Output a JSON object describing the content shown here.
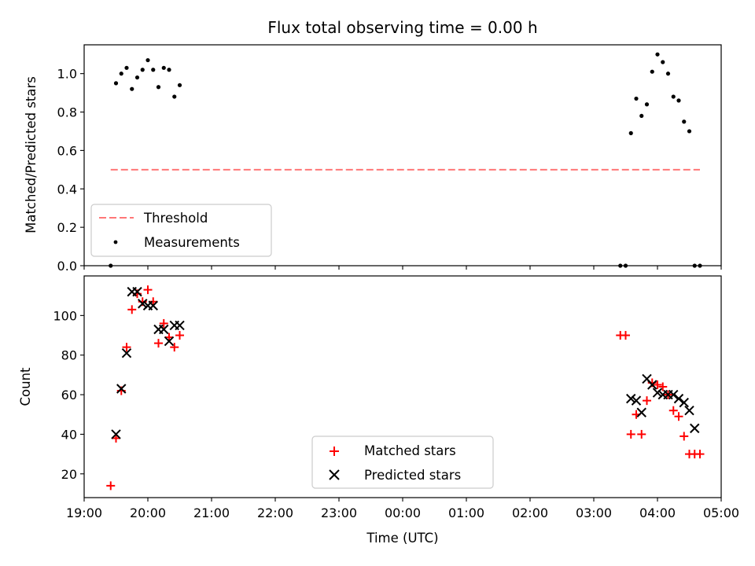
{
  "chart_data": [
    {
      "type": "scatter",
      "title": "Flux total observing time = 0.00 h",
      "xlabel": "",
      "ylabel": "Matched/Predicted stars",
      "xlim": [
        "19:00",
        "05:00"
      ],
      "ylim": [
        0,
        1.15
      ],
      "ytick_labels": [
        "0.0",
        "0.2",
        "0.4",
        "0.6",
        "0.8",
        "1.0"
      ],
      "ytick_values": [
        0,
        0.2,
        0.4,
        0.6,
        0.8,
        1.0
      ],
      "grid": false,
      "legend_position": "lower-left",
      "threshold": {
        "name": "Threshold",
        "value": 0.5,
        "x_start": "19:25",
        "x_end": "04:40",
        "color": "#ff7777",
        "style": "dashed"
      },
      "series": [
        {
          "name": "Measurements",
          "marker": "dot",
          "color": "#000000",
          "points": [
            {
              "x": "19:25",
              "y": 0.0
            },
            {
              "x": "19:30",
              "y": 0.95
            },
            {
              "x": "19:35",
              "y": 1.0
            },
            {
              "x": "19:40",
              "y": 1.03
            },
            {
              "x": "19:45",
              "y": 0.92
            },
            {
              "x": "19:50",
              "y": 0.98
            },
            {
              "x": "19:55",
              "y": 1.02
            },
            {
              "x": "20:00",
              "y": 1.07
            },
            {
              "x": "20:05",
              "y": 1.02
            },
            {
              "x": "20:10",
              "y": 0.93
            },
            {
              "x": "20:15",
              "y": 1.03
            },
            {
              "x": "20:20",
              "y": 1.02
            },
            {
              "x": "20:25",
              "y": 0.88
            },
            {
              "x": "20:30",
              "y": 0.94
            },
            {
              "x": "03:25",
              "y": 0.0
            },
            {
              "x": "03:30",
              "y": 0.0
            },
            {
              "x": "03:35",
              "y": 0.69
            },
            {
              "x": "03:40",
              "y": 0.87
            },
            {
              "x": "03:45",
              "y": 0.78
            },
            {
              "x": "03:50",
              "y": 0.84
            },
            {
              "x": "03:55",
              "y": 1.01
            },
            {
              "x": "04:00",
              "y": 1.1
            },
            {
              "x": "04:05",
              "y": 1.06
            },
            {
              "x": "04:10",
              "y": 1.0
            },
            {
              "x": "04:15",
              "y": 0.88
            },
            {
              "x": "04:20",
              "y": 0.86
            },
            {
              "x": "04:25",
              "y": 0.75
            },
            {
              "x": "04:30",
              "y": 0.7
            },
            {
              "x": "04:35",
              "y": 0.0
            },
            {
              "x": "04:40",
              "y": 0.0
            }
          ]
        }
      ]
    },
    {
      "type": "scatter",
      "title": "",
      "xlabel": "Time (UTC)",
      "ylabel": "Count",
      "xlim": [
        "19:00",
        "05:00"
      ],
      "ylim": [
        8,
        120
      ],
      "xtick_labels": [
        "19:00",
        "20:00",
        "21:00",
        "22:00",
        "23:00",
        "00:00",
        "01:00",
        "02:00",
        "03:00",
        "04:00",
        "05:00"
      ],
      "ytick_labels": [
        "20",
        "40",
        "60",
        "80",
        "100"
      ],
      "ytick_values": [
        20,
        40,
        60,
        80,
        100
      ],
      "grid": false,
      "legend_position": "lower-center",
      "series": [
        {
          "name": "Matched stars",
          "marker": "plus",
          "color": "#ff0000",
          "points": [
            {
              "x": "19:25",
              "y": 14
            },
            {
              "x": "19:30",
              "y": 38
            },
            {
              "x": "19:35",
              "y": 62
            },
            {
              "x": "19:40",
              "y": 84
            },
            {
              "x": "19:45",
              "y": 103
            },
            {
              "x": "19:50",
              "y": 111
            },
            {
              "x": "19:55",
              "y": 107
            },
            {
              "x": "20:00",
              "y": 113
            },
            {
              "x": "20:05",
              "y": 107
            },
            {
              "x": "20:10",
              "y": 86
            },
            {
              "x": "20:15",
              "y": 96
            },
            {
              "x": "20:20",
              "y": 89
            },
            {
              "x": "20:25",
              "y": 84
            },
            {
              "x": "20:30",
              "y": 90
            },
            {
              "x": "03:25",
              "y": 90
            },
            {
              "x": "03:30",
              "y": 90
            },
            {
              "x": "03:35",
              "y": 40
            },
            {
              "x": "03:40",
              "y": 50
            },
            {
              "x": "03:45",
              "y": 40
            },
            {
              "x": "03:50",
              "y": 57
            },
            {
              "x": "03:55",
              "y": 66
            },
            {
              "x": "04:00",
              "y": 65
            },
            {
              "x": "04:05",
              "y": 64
            },
            {
              "x": "04:10",
              "y": 60
            },
            {
              "x": "04:15",
              "y": 52
            },
            {
              "x": "04:20",
              "y": 49
            },
            {
              "x": "04:25",
              "y": 39
            },
            {
              "x": "04:30",
              "y": 30
            },
            {
              "x": "04:35",
              "y": 30
            },
            {
              "x": "04:40",
              "y": 30
            }
          ]
        },
        {
          "name": "Predicted stars",
          "marker": "x",
          "color": "#000000",
          "points": [
            {
              "x": "19:30",
              "y": 40
            },
            {
              "x": "19:35",
              "y": 63
            },
            {
              "x": "19:40",
              "y": 81
            },
            {
              "x": "19:45",
              "y": 112
            },
            {
              "x": "19:50",
              "y": 112
            },
            {
              "x": "19:55",
              "y": 106
            },
            {
              "x": "20:00",
              "y": 105
            },
            {
              "x": "20:05",
              "y": 105
            },
            {
              "x": "20:10",
              "y": 93
            },
            {
              "x": "20:15",
              "y": 93
            },
            {
              "x": "20:20",
              "y": 87
            },
            {
              "x": "20:25",
              "y": 95
            },
            {
              "x": "20:30",
              "y": 95
            },
            {
              "x": "03:35",
              "y": 58
            },
            {
              "x": "03:40",
              "y": 57
            },
            {
              "x": "03:45",
              "y": 51
            },
            {
              "x": "03:50",
              "y": 68
            },
            {
              "x": "03:55",
              "y": 65
            },
            {
              "x": "04:00",
              "y": 61
            },
            {
              "x": "04:05",
              "y": 60
            },
            {
              "x": "04:10",
              "y": 60
            },
            {
              "x": "04:15",
              "y": 60
            },
            {
              "x": "04:20",
              "y": 58
            },
            {
              "x": "04:25",
              "y": 56
            },
            {
              "x": "04:30",
              "y": 52
            },
            {
              "x": "04:35",
              "y": 43
            }
          ]
        }
      ]
    }
  ]
}
